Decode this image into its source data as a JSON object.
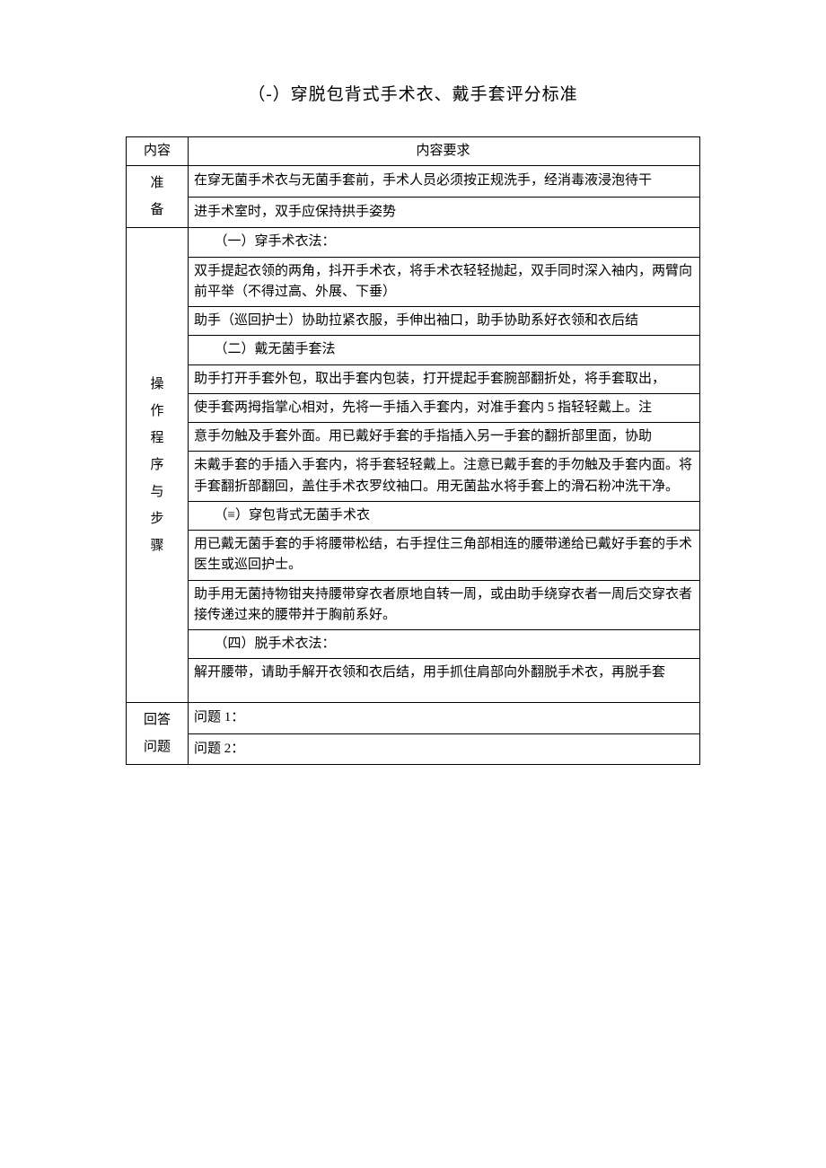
{
  "document": {
    "title": "（-）穿脱包背式手术衣、戴手套评分标准",
    "background_color": "#ffffff",
    "text_color": "#000000",
    "border_color": "#000000",
    "font_size_title": 19,
    "font_size_body": 15
  },
  "table": {
    "header": {
      "col1": "内容",
      "col2": "内容要求"
    },
    "sections": {
      "prep": {
        "label": "准备",
        "rows": [
          "在穿无菌手术衣与无菌手套前，手术人员必须按正规洗手，经消毒液浸泡待干",
          "进手术室时，双手应保持拱手姿势"
        ]
      },
      "procedure": {
        "label": "操作程序与步骤",
        "rows": [
          {
            "text": "（一）穿手术衣法：",
            "indent": true
          },
          {
            "text": "双手提起衣领的两角，抖开手术衣，将手术衣轻轻抛起，双手同时深入袖内，两臂向前平举（不得过高、外展、下垂）",
            "indent": false
          },
          {
            "text": "助手（巡回护士）协助拉紧衣服，手伸出袖口，助手协助系好衣领和衣后结",
            "indent": false
          },
          {
            "text": "（二）戴无菌手套法",
            "indent": true
          },
          {
            "text": "助手打开手套外包，取出手套内包装，打开提起手套腕部翻折处，将手套取出，",
            "indent": false
          },
          {
            "text": "使手套两拇指掌心相对，先将一手插入手套内，对准手套内 5 指轻轻戴上。注",
            "indent": false
          },
          {
            "text": "意手勿触及手套外面。用已戴好手套的手指插入另一手套的翻折部里面，协助",
            "indent": false
          },
          {
            "text": "未戴手套的手插入手套内，将手套轻轻戴上。注意已戴手套的手勿触及手套内面。将手套翻折部翻回，盖住手术衣罗纹袖口。用无菌盐水将手套上的滑石粉冲洗干净。",
            "indent": false
          },
          {
            "text": "（≡）穿包背式无菌手术衣",
            "indent": true
          },
          {
            "text": "用已戴无菌手套的手将腰带松结，右手捏住三角部相连的腰带递给已戴好手套的手术医生或巡回护士。",
            "indent": false
          },
          {
            "text": "助手用无菌持物钳夹持腰带穿衣者原地自转一周，或由助手绕穿衣者一周后交穿衣者接传递过来的腰带并于胸前系好。",
            "indent": false
          },
          {
            "text": "（四）脱手术衣法：",
            "indent": true
          },
          {
            "text": "解开腰带，请助手解开衣领和衣后结，用手抓住肩部向外翻脱手术衣，再脱手套",
            "indent": false,
            "tall": true
          }
        ]
      },
      "questions": {
        "label": "回答问题",
        "rows": [
          "问题 1：",
          "问题 2："
        ]
      }
    }
  }
}
